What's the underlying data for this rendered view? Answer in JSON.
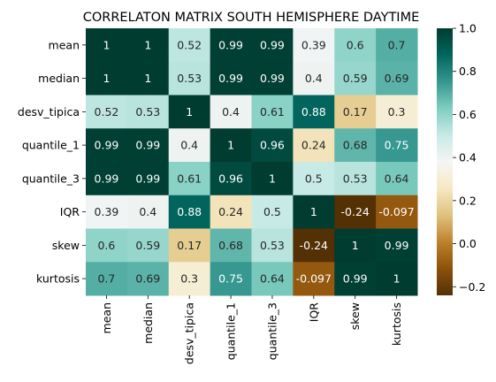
{
  "chart_data": {
    "type": "heatmap",
    "title": "CORRELATON MATRIX SOUTH HEMISPHERE DAYTIME",
    "xlabel": "",
    "ylabel": "",
    "rows": [
      "mean",
      "median",
      "desv_tipica",
      "quantile_1",
      "quantile_3",
      "IQR",
      "skew",
      "kurtosis"
    ],
    "columns": [
      "mean",
      "median",
      "desv_tipica",
      "quantile_1",
      "quantile_3",
      "IQR",
      "skew",
      "kurtosis"
    ],
    "values": [
      [
        1,
        1,
        0.52,
        0.99,
        0.99,
        0.39,
        0.6,
        0.7
      ],
      [
        1,
        1,
        0.53,
        0.99,
        0.99,
        0.4,
        0.59,
        0.69
      ],
      [
        0.52,
        0.53,
        1,
        0.4,
        0.61,
        0.88,
        0.17,
        0.3
      ],
      [
        0.99,
        0.99,
        0.4,
        1,
        0.96,
        0.24,
        0.68,
        0.75
      ],
      [
        0.99,
        0.99,
        0.61,
        0.96,
        1,
        0.5,
        0.53,
        0.64
      ],
      [
        0.39,
        0.4,
        0.88,
        0.24,
        0.5,
        1,
        -0.24,
        -0.097
      ],
      [
        0.6,
        0.59,
        0.17,
        0.68,
        0.53,
        -0.24,
        1,
        0.99
      ],
      [
        0.7,
        0.69,
        0.3,
        0.75,
        0.64,
        -0.097,
        0.99,
        1
      ]
    ],
    "value_labels": [
      [
        "1",
        "1",
        "0.52",
        "0.99",
        "0.99",
        "0.39",
        "0.6",
        "0.7"
      ],
      [
        "1",
        "1",
        "0.53",
        "0.99",
        "0.99",
        "0.4",
        "0.59",
        "0.69"
      ],
      [
        "0.52",
        "0.53",
        "1",
        "0.4",
        "0.61",
        "0.88",
        "0.17",
        "0.3"
      ],
      [
        "0.99",
        "0.99",
        "0.4",
        "1",
        "0.96",
        "0.24",
        "0.68",
        "0.75"
      ],
      [
        "0.99",
        "0.99",
        "0.61",
        "0.96",
        "1",
        "0.5",
        "0.53",
        "0.64"
      ],
      [
        "0.39",
        "0.4",
        "0.88",
        "0.24",
        "0.5",
        "1",
        "-0.24",
        "-0.097"
      ],
      [
        "0.6",
        "0.59",
        "0.17",
        "0.68",
        "0.53",
        "-0.24",
        "1",
        "0.99"
      ],
      [
        "0.7",
        "0.69",
        "0.3",
        "0.75",
        "0.64",
        "-0.097",
        "0.99",
        "1"
      ]
    ],
    "colormap": "BrBG",
    "vmin": -0.24,
    "vmax": 1.0,
    "colorbar_ticks": [
      1.0,
      0.8,
      0.6,
      0.4,
      0.2,
      0.0,
      -0.2
    ],
    "colorbar_tick_labels": [
      "1.0",
      "0.8",
      "0.6",
      "0.4",
      "0.2",
      "0.0",
      "−0.2"
    ],
    "annotated": true,
    "grid": false,
    "colorbar_position": "right"
  }
}
